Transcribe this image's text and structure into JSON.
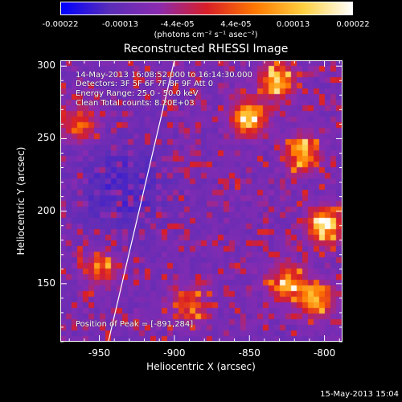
{
  "chart_data": {
    "type": "heatmap",
    "title": "Reconstructed RHESSI Image",
    "xlabel": "Heliocentric X (arcsec)",
    "ylabel": "Heliocentric Y (arcsec)",
    "xlim": [
      -976,
      -788
    ],
    "ylim": [
      110,
      304
    ],
    "xticks": [
      -950,
      -900,
      -850,
      -800
    ],
    "yticks": [
      150,
      200,
      250,
      300
    ],
    "xtick_labels": [
      "-950",
      "-900",
      "-850",
      "-800"
    ],
    "ytick_labels": [
      "150",
      "200",
      "250",
      "300"
    ],
    "colorbar": {
      "range": [
        -0.00022,
        0.00022
      ],
      "ticks": [
        -0.00022,
        -0.00013,
        -4.4e-05,
        4.4e-05,
        0.00013,
        0.00022
      ],
      "tick_labels": [
        "-0.00022",
        "-0.00013",
        "-4.4e-05",
        "4.4e-05",
        "0.00013",
        "0.00022"
      ],
      "units": "(photons cm⁻² s⁻¹ asec⁻²)",
      "colors": [
        "#0000ff",
        "#5a2db8",
        "#8a2bb0",
        "#d81e28",
        "#ff7800",
        "#ffd040",
        "#ffffff"
      ]
    },
    "bright_regions": [
      {
        "x": -850,
        "y": 265,
        "intensity": 1.0
      },
      {
        "x": -832,
        "y": 290,
        "intensity": 0.95
      },
      {
        "x": -815,
        "y": 240,
        "intensity": 0.9
      },
      {
        "x": -800,
        "y": 190,
        "intensity": 0.95
      },
      {
        "x": -825,
        "y": 150,
        "intensity": 0.85
      },
      {
        "x": -806,
        "y": 140,
        "intensity": 0.9
      },
      {
        "x": -962,
        "y": 260,
        "intensity": 0.6
      },
      {
        "x": -950,
        "y": 160,
        "intensity": 0.55
      },
      {
        "x": -890,
        "y": 135,
        "intensity": 0.6
      }
    ],
    "limb_line": {
      "x": [
        -944,
        -900
      ],
      "y": [
        110,
        304
      ]
    }
  },
  "info": {
    "line1": "14-May-2013 16:08:52.000 to 16:14:30.000",
    "line2": "Detectors: 3F 5F 6F 7F 8F 9F  Att 0",
    "line3": "Energy Range: 25.0 - 50.0 keV",
    "line4": "Clean     Total counts: 8.20E+03",
    "peak": "Position of Peak = [-891,284]"
  },
  "timestamp": "15-May-2013 15:04"
}
